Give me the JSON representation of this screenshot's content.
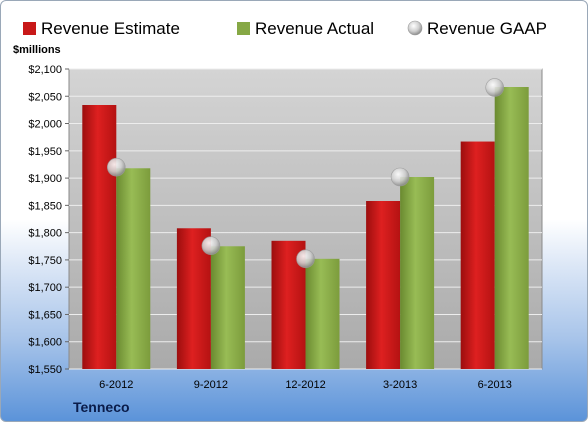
{
  "chart_data": {
    "type": "bar",
    "title": "",
    "ylabel": "$millions",
    "xlabel": "",
    "footer_label": "Tenneco",
    "categories": [
      "6-2012",
      "9-2012",
      "12-2012",
      "3-2013",
      "6-2013"
    ],
    "ylim": [
      1550,
      2100
    ],
    "ytick_step": 50,
    "ytick_labels": [
      "$1,550",
      "$1,600",
      "$1,650",
      "$1,700",
      "$1,750",
      "$1,800",
      "$1,850",
      "$1,900",
      "$1,950",
      "$2,000",
      "$2,050",
      "$2,100"
    ],
    "grid": true,
    "legend_position": "top",
    "series": [
      {
        "name": "Revenue Estimate",
        "kind": "bar",
        "color": "#c81818",
        "values": [
          2034,
          1808,
          1785,
          1858,
          1967
        ]
      },
      {
        "name": "Revenue Actual",
        "kind": "bar",
        "color": "#86a845",
        "values": [
          1918,
          1775,
          1752,
          1902,
          2067
        ]
      },
      {
        "name": "Revenue GAAP",
        "kind": "marker",
        "color": "#c9c9c9",
        "values": [
          1920,
          1776,
          1752,
          1902,
          2066
        ]
      }
    ]
  }
}
